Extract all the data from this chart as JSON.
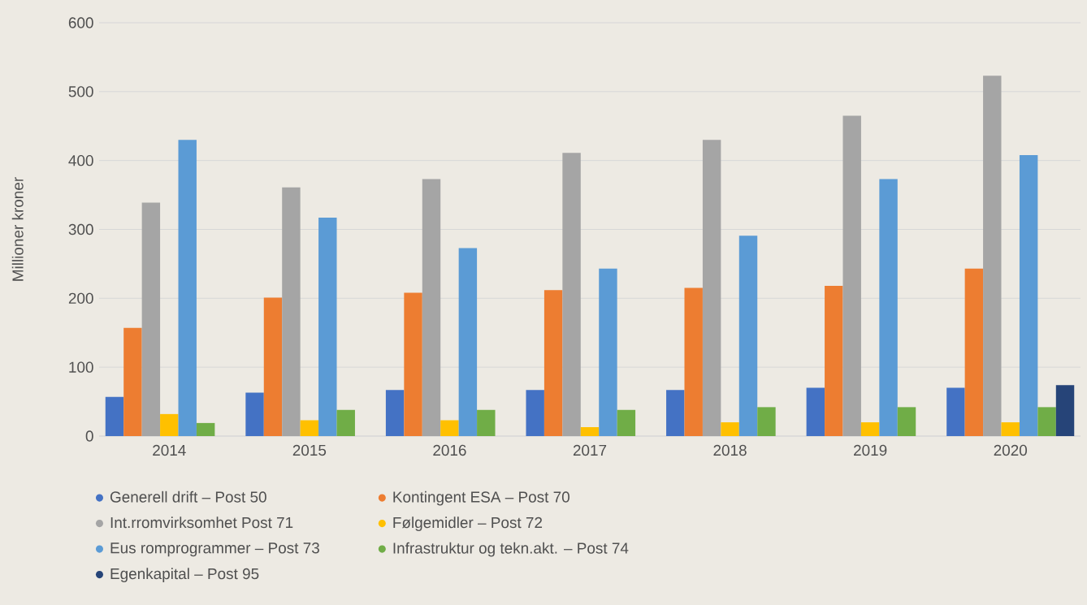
{
  "chart_data": {
    "type": "bar",
    "ylabel": "Millioner kroner",
    "categories": [
      "2014",
      "2015",
      "2016",
      "2017",
      "2018",
      "2019",
      "2020"
    ],
    "ylim": [
      0,
      600
    ],
    "yticks": [
      0,
      100,
      200,
      300,
      400,
      500,
      600
    ],
    "grid": "y",
    "legend": "bottom",
    "series": [
      {
        "name": "Generell drift – Post 50",
        "color": "#4472c4",
        "values": [
          57,
          63,
          67,
          67,
          67,
          70,
          70
        ]
      },
      {
        "name": "Kontingent ESA – Post 70",
        "color": "#ed7d31",
        "values": [
          157,
          201,
          208,
          212,
          215,
          218,
          243
        ]
      },
      {
        "name": "Int.rromvirksomhet Post 71",
        "color": "#a5a5a5",
        "values": [
          339,
          361,
          373,
          411,
          430,
          465,
          523
        ]
      },
      {
        "name": "Følgemidler  – Post 72",
        "color": "#ffc000",
        "values": [
          32,
          23,
          23,
          13,
          20,
          20,
          20
        ]
      },
      {
        "name": "Eus romprogrammer – Post 73",
        "color": "#5b9bd5",
        "values": [
          430,
          317,
          273,
          243,
          291,
          373,
          408
        ]
      },
      {
        "name": "Infrastruktur og tekn.akt. – Post 74",
        "color": "#70ad47",
        "values": [
          19,
          38,
          38,
          38,
          42,
          42,
          42
        ]
      },
      {
        "name": "Egenkapital – Post 95",
        "color": "#264478",
        "values": [
          null,
          null,
          null,
          null,
          null,
          null,
          74
        ]
      }
    ]
  }
}
